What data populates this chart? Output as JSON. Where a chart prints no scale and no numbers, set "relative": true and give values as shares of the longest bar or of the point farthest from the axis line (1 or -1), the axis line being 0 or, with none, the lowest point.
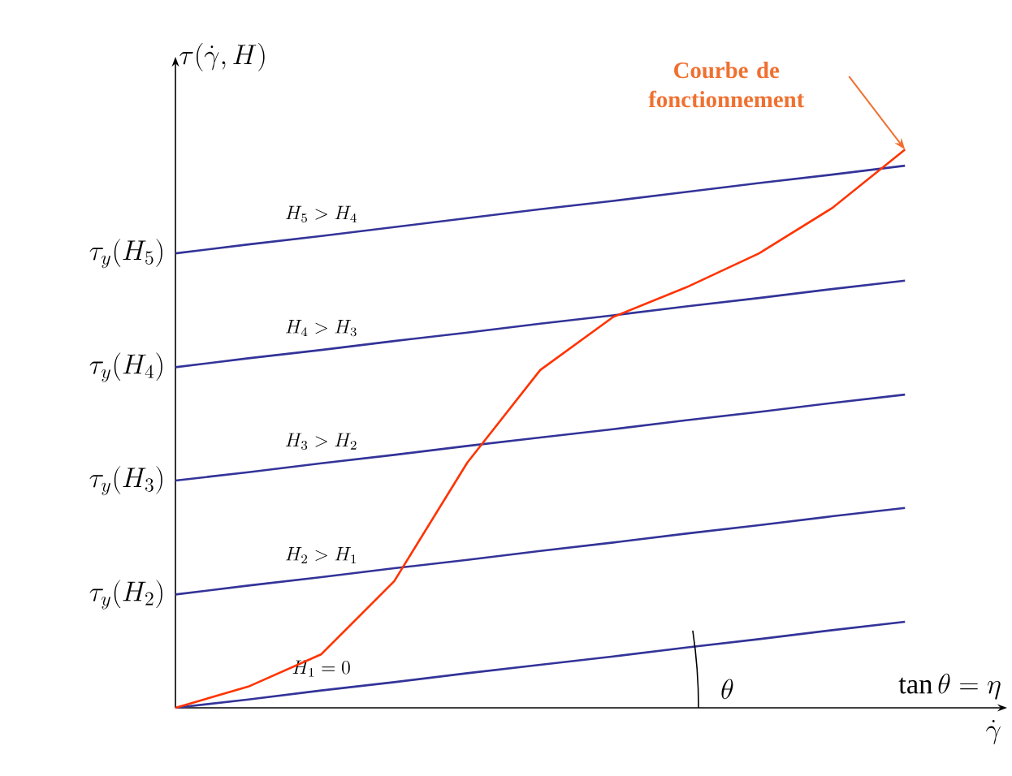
{
  "chart_data": {
    "type": "line",
    "relative": true,
    "marker": "none",
    "line_style": "solid",
    "xlabel": "\\dot{\\gamma}",
    "ylabel": "\\tau(\\dot{\\gamma}, H)",
    "categories": [
      null,
      null,
      null,
      null,
      null,
      null,
      null,
      null,
      null,
      null,
      null
    ],
    "series": [
      {
        "name": "H_1 = 0",
        "color": "#333399",
        "values": [
          0,
          0.015,
          0.031,
          0.046,
          0.062,
          0.077,
          0.092,
          0.108,
          0.123,
          0.139,
          0.154
        ]
      },
      {
        "name": "H_2 > H_1",
        "color": "#333399",
        "values": [
          0.203,
          0.219,
          0.234,
          0.25,
          0.265,
          0.281,
          0.296,
          0.312,
          0.327,
          0.343,
          0.358
        ]
      },
      {
        "name": "H_3 > H_2",
        "color": "#333399",
        "values": [
          0.407,
          0.422,
          0.438,
          0.453,
          0.469,
          0.484,
          0.499,
          0.515,
          0.53,
          0.546,
          0.561
        ]
      },
      {
        "name": "H_4 > H_3",
        "color": "#333399",
        "values": [
          0.61,
          0.626,
          0.641,
          0.657,
          0.672,
          0.688,
          0.703,
          0.719,
          0.734,
          0.75,
          0.765
        ]
      },
      {
        "name": "H_5 > H_4",
        "color": "#333399",
        "values": [
          0.814,
          0.83,
          0.845,
          0.861,
          0.877,
          0.893,
          0.908,
          0.924,
          0.94,
          0.955,
          0.971
        ]
      },
      {
        "color": "#ff3300",
        "values": [
          0,
          0.038,
          0.096,
          0.227,
          0.439,
          0.605,
          0.7,
          0.753,
          0.814,
          0.895,
          1
        ]
      }
    ],
    "annotations": [
      "\\tau_y(H_2)",
      "\\tau_y(H_3)",
      "\\tau_y(H_4)",
      "\\tau_y(H_5)",
      "Courbe de fonctionnement",
      "\\theta",
      "\\tan\\theta = \\eta"
    ]
  }
}
